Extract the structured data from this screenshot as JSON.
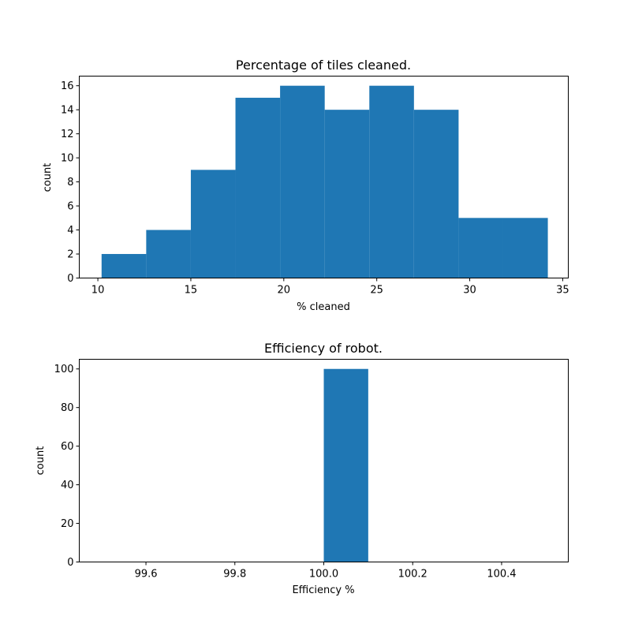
{
  "chart_data": [
    {
      "type": "bar",
      "title": "Percentage of tiles cleaned.",
      "xlabel": "% cleaned",
      "ylabel": "count",
      "xlim": [
        9.0,
        35.3
      ],
      "ylim": [
        0,
        16.8
      ],
      "xticks": [
        10,
        15,
        20,
        25,
        30,
        35
      ],
      "xtick_labels": [
        "10",
        "15",
        "20",
        "25",
        "30",
        "35"
      ],
      "yticks": [
        0,
        2,
        4,
        6,
        8,
        10,
        12,
        14,
        16
      ],
      "ytick_labels": [
        "0",
        "2",
        "4",
        "6",
        "8",
        "10",
        "12",
        "14",
        "16"
      ],
      "bars": [
        {
          "x0": 10.2,
          "x1": 12.6,
          "value": 2
        },
        {
          "x0": 12.6,
          "x1": 15.0,
          "value": 4
        },
        {
          "x0": 15.0,
          "x1": 17.4,
          "value": 9
        },
        {
          "x0": 17.4,
          "x1": 19.8,
          "value": 15
        },
        {
          "x0": 19.8,
          "x1": 22.2,
          "value": 16
        },
        {
          "x0": 22.2,
          "x1": 24.6,
          "value": 14
        },
        {
          "x0": 24.6,
          "x1": 27.0,
          "value": 16
        },
        {
          "x0": 27.0,
          "x1": 29.4,
          "value": 14
        },
        {
          "x0": 29.4,
          "x1": 31.8,
          "value": 5
        },
        {
          "x0": 31.8,
          "x1": 34.2,
          "value": 5
        }
      ],
      "color": "#1f77b4",
      "grid": false
    },
    {
      "type": "bar",
      "title": "Efficiency of robot.",
      "xlabel": "Efficiency %",
      "ylabel": "count",
      "xlim": [
        99.45,
        100.55
      ],
      "ylim": [
        0,
        105
      ],
      "xticks": [
        99.6,
        99.8,
        100.0,
        100.2,
        100.4
      ],
      "xtick_labels": [
        "99.6",
        "99.8",
        "100.0",
        "100.2",
        "100.4"
      ],
      "yticks": [
        0,
        20,
        40,
        60,
        80,
        100
      ],
      "ytick_labels": [
        "0",
        "20",
        "40",
        "60",
        "80",
        "100"
      ],
      "bars": [
        {
          "x0": 100.0,
          "x1": 100.1,
          "value": 100
        }
      ],
      "color": "#1f77b4",
      "grid": false
    }
  ]
}
